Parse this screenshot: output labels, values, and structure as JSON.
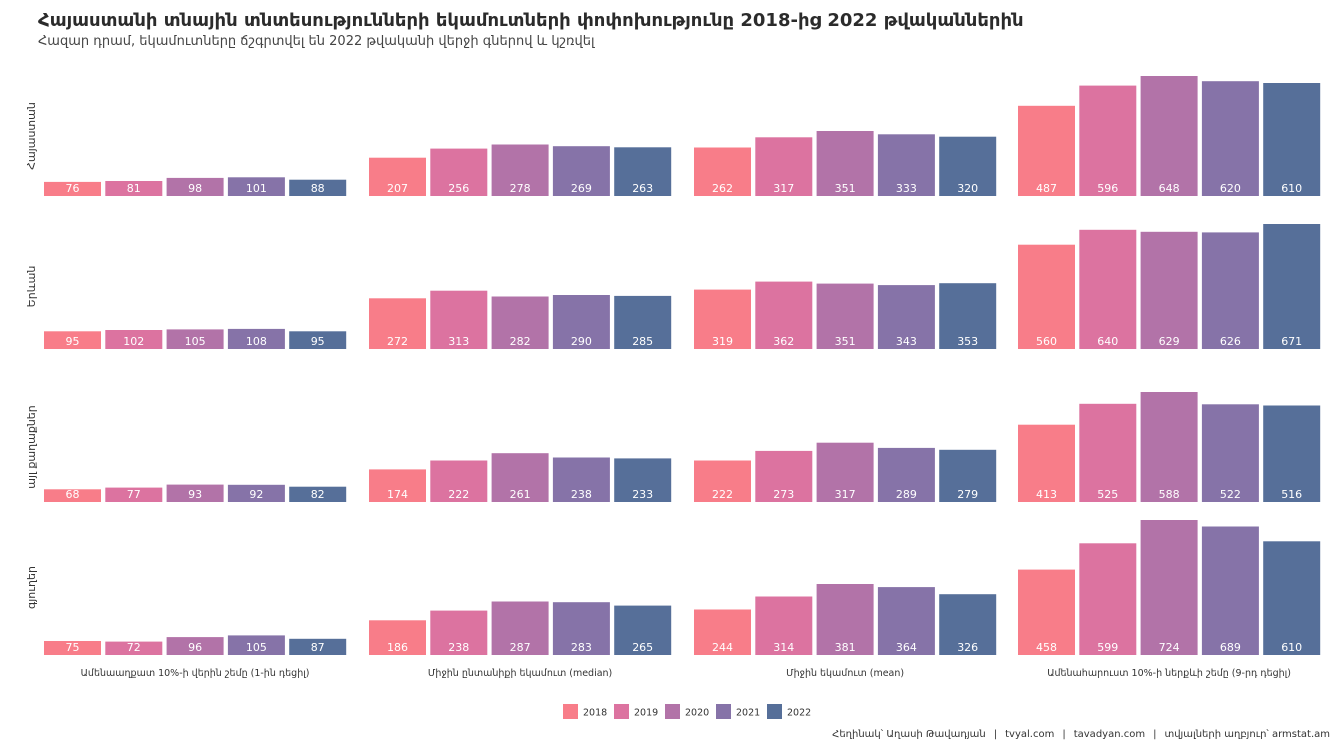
{
  "title": "Հայաստանի տնային տնտեսությունների եկամուտների փոփոխությունը 2018-ից 2022 թվականներին",
  "subtitle": "Հազար դրամ, եկամուտները ճշգրտվել են 2022 թվականի վերջի գներով և կշռվել",
  "caption": {
    "author": "Հեղինակ՝ Աղասի Թավադյան",
    "site1": "tvyal.com",
    "site2": "tavadyan.com",
    "source": "տվյալների աղբյուր՝ armstat.am",
    "separator": "|"
  },
  "colors": {
    "2018": "#f87d89",
    "2019": "#dc73a0",
    "2020": "#b273a8",
    "2021": "#8673a8",
    "2022": "#566f99"
  },
  "chart_data": {
    "type": "bar",
    "facet_rows": [
      "Հայաստան",
      "Երևան",
      "այլ քաղաքներ",
      "գյուղեր"
    ],
    "facet_cols": [
      "Ամենաաղքատ 10%-ի վերին շեմը (1-ին դեցիլ)",
      "Միջին ընտանիքի եկամուտ (median)",
      "Միջին եկամուտ (mean)",
      "Ամենահարուստ 10%-ի ներքևի շեմը (9-րդ դեցիլ)"
    ],
    "years": [
      "2018",
      "2019",
      "2020",
      "2021",
      "2022"
    ],
    "legend_position": "bottom",
    "grid": false,
    "values": [
      [
        [
          76,
          81,
          98,
          101,
          88
        ],
        [
          207,
          256,
          278,
          269,
          263
        ],
        [
          262,
          317,
          351,
          333,
          320
        ],
        [
          487,
          596,
          648,
          620,
          610
        ]
      ],
      [
        [
          95,
          102,
          105,
          108,
          95
        ],
        [
          272,
          313,
          282,
          290,
          285
        ],
        [
          319,
          362,
          351,
          343,
          353
        ],
        [
          560,
          640,
          629,
          626,
          671
        ]
      ],
      [
        [
          68,
          77,
          93,
          92,
          82
        ],
        [
          174,
          222,
          261,
          238,
          233
        ],
        [
          222,
          273,
          317,
          289,
          279
        ],
        [
          413,
          525,
          588,
          522,
          516
        ]
      ],
      [
        [
          75,
          72,
          96,
          105,
          87
        ],
        [
          186,
          238,
          287,
          283,
          265
        ],
        [
          244,
          314,
          381,
          364,
          326
        ],
        [
          458,
          599,
          724,
          689,
          610
        ]
      ]
    ]
  }
}
